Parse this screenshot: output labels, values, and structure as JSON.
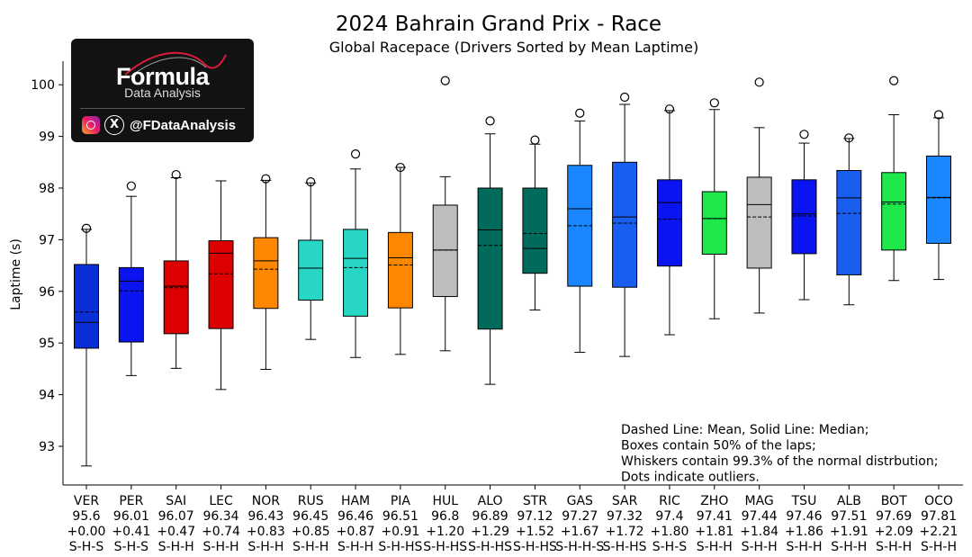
{
  "chart_data": {
    "type": "box",
    "title": "2024 Bahrain Grand Prix - Race",
    "subtitle": "Global Racepace (Drivers Sorted by Mean Laptime)",
    "ylabel": "Laptime (s)",
    "ylim": [
      92.3,
      100.5
    ],
    "yticks": [
      93,
      94,
      95,
      96,
      97,
      98,
      99,
      100
    ],
    "series": [
      {
        "driver": "VER",
        "mean_label": "95.6",
        "delta": "+0.00",
        "strategy": "S-H-S",
        "color": "#0a2fd6",
        "wlo": 92.62,
        "q1": 94.9,
        "median": 95.4,
        "mean": 95.6,
        "q3": 96.52,
        "whi": 97.2,
        "outliers": [
          97.22
        ]
      },
      {
        "driver": "PER",
        "mean_label": "96.01",
        "delta": "+0.41",
        "strategy": "S-H-S",
        "color": "#0a14f0",
        "wlo": 94.37,
        "q1": 95.02,
        "median": 96.2,
        "mean": 96.01,
        "q3": 96.46,
        "whi": 97.84,
        "outliers": [
          98.04
        ]
      },
      {
        "driver": "SAI",
        "mean_label": "96.07",
        "delta": "+0.47",
        "strategy": "S-H-H",
        "color": "#dc0000",
        "wlo": 94.51,
        "q1": 95.18,
        "median": 96.1,
        "mean": 96.07,
        "q3": 96.59,
        "whi": 98.2,
        "outliers": [
          98.26
        ]
      },
      {
        "driver": "LEC",
        "mean_label": "96.34",
        "delta": "+0.74",
        "strategy": "S-H-H",
        "color": "#dc0000",
        "wlo": 94.1,
        "q1": 95.28,
        "median": 96.74,
        "mean": 96.34,
        "q3": 96.98,
        "whi": 98.14,
        "outliers": []
      },
      {
        "driver": "NOR",
        "mean_label": "96.43",
        "delta": "+0.83",
        "strategy": "S-H-H",
        "color": "#ff8700",
        "wlo": 94.49,
        "q1": 95.67,
        "median": 96.59,
        "mean": 96.43,
        "q3": 97.04,
        "whi": 98.15,
        "outliers": [
          98.18
        ]
      },
      {
        "driver": "RUS",
        "mean_label": "96.45",
        "delta": "+0.85",
        "strategy": "S-H-H",
        "color": "#27d6c4",
        "wlo": 95.07,
        "q1": 95.83,
        "median": 96.45,
        "mean": 96.45,
        "q3": 96.99,
        "whi": 98.1,
        "outliers": [
          98.12
        ]
      },
      {
        "driver": "HAM",
        "mean_label": "96.46",
        "delta": "+0.87",
        "strategy": "S-H-H",
        "color": "#27d6c4",
        "wlo": 94.72,
        "q1": 95.52,
        "median": 96.64,
        "mean": 96.46,
        "q3": 97.2,
        "whi": 98.37,
        "outliers": [
          98.66
        ]
      },
      {
        "driver": "PIA",
        "mean_label": "96.51",
        "delta": "+0.91",
        "strategy": "S-H-HS",
        "color": "#ff8700",
        "wlo": 94.78,
        "q1": 95.68,
        "median": 96.65,
        "mean": 96.51,
        "q3": 97.14,
        "whi": 98.4,
        "outliers": [
          98.4
        ]
      },
      {
        "driver": "HUL",
        "mean_label": "96.8",
        "delta": "+1.20",
        "strategy": "S-H-HS",
        "color": "#bdbdbd",
        "wlo": 94.85,
        "q1": 95.9,
        "median": 96.8,
        "mean": 96.8,
        "q3": 97.67,
        "whi": 98.22,
        "outliers": [
          100.08
        ]
      },
      {
        "driver": "ALO",
        "mean_label": "96.89",
        "delta": "+1.29",
        "strategy": "S-H-HS",
        "color": "#006b5a",
        "wlo": 94.2,
        "q1": 95.27,
        "median": 97.19,
        "mean": 96.89,
        "q3": 98.0,
        "whi": 99.05,
        "outliers": [
          99.3
        ]
      },
      {
        "driver": "STR",
        "mean_label": "97.12",
        "delta": "+1.52",
        "strategy": "S-H-HS",
        "color": "#006b5a",
        "wlo": 95.64,
        "q1": 96.35,
        "median": 96.83,
        "mean": 97.12,
        "q3": 98.0,
        "whi": 98.85,
        "outliers": [
          98.93
        ]
      },
      {
        "driver": "GAS",
        "mean_label": "97.27",
        "delta": "+1.67",
        "strategy": "S-H-H-S",
        "color": "#1a86ff",
        "wlo": 94.82,
        "q1": 96.1,
        "median": 97.6,
        "mean": 97.27,
        "q3": 98.44,
        "whi": 99.3,
        "outliers": [
          99.45
        ]
      },
      {
        "driver": "SAR",
        "mean_label": "97.32",
        "delta": "+1.72",
        "strategy": "S-H-HS",
        "color": "#1a5ef0",
        "wlo": 94.74,
        "q1": 96.08,
        "median": 97.44,
        "mean": 97.32,
        "q3": 98.5,
        "whi": 99.62,
        "outliers": [
          99.76
        ]
      },
      {
        "driver": "RIC",
        "mean_label": "97.4",
        "delta": "+1.80",
        "strategy": "S-H-S",
        "color": "#0a14f0",
        "wlo": 95.16,
        "q1": 96.49,
        "median": 97.72,
        "mean": 97.4,
        "q3": 98.16,
        "whi": 99.5,
        "outliers": [
          99.53
        ]
      },
      {
        "driver": "ZHO",
        "mean_label": "97.41",
        "delta": "+1.81",
        "strategy": "S-H-H",
        "color": "#1ee84a",
        "wlo": 95.47,
        "q1": 96.72,
        "median": 97.41,
        "mean": 97.41,
        "q3": 97.93,
        "whi": 99.52,
        "outliers": [
          99.65
        ]
      },
      {
        "driver": "MAG",
        "mean_label": "97.44",
        "delta": "+1.84",
        "strategy": "S-H-H",
        "color": "#bdbdbd",
        "wlo": 95.58,
        "q1": 96.45,
        "median": 97.68,
        "mean": 97.44,
        "q3": 98.21,
        "whi": 99.17,
        "outliers": [
          100.05
        ]
      },
      {
        "driver": "TSU",
        "mean_label": "97.46",
        "delta": "+1.86",
        "strategy": "S-H-H",
        "color": "#0a14f0",
        "wlo": 95.84,
        "q1": 96.73,
        "median": 97.5,
        "mean": 97.46,
        "q3": 98.16,
        "whi": 98.87,
        "outliers": [
          99.04
        ]
      },
      {
        "driver": "ALB",
        "mean_label": "97.51",
        "delta": "+1.91",
        "strategy": "S-H-H",
        "color": "#1a5ef0",
        "wlo": 95.74,
        "q1": 96.32,
        "median": 97.81,
        "mean": 97.51,
        "q3": 98.34,
        "whi": 98.96,
        "outliers": [
          98.97
        ]
      },
      {
        "driver": "BOT",
        "mean_label": "97.69",
        "delta": "+2.09",
        "strategy": "S-H-H",
        "color": "#1ee84a",
        "wlo": 96.21,
        "q1": 96.8,
        "median": 97.73,
        "mean": 97.69,
        "q3": 98.3,
        "whi": 99.42,
        "outliers": [
          100.08
        ]
      },
      {
        "driver": "OCO",
        "mean_label": "97.81",
        "delta": "+2.21",
        "strategy": "S-H-H",
        "color": "#1a86ff",
        "wlo": 96.23,
        "q1": 96.93,
        "median": 97.82,
        "mean": 97.81,
        "q3": 98.62,
        "whi": 99.36,
        "outliers": [
          99.42
        ]
      }
    ],
    "annotation": [
      "Dashed Line: Mean, Solid Line: Median;",
      "Boxes contain 50% of the laps;",
      "Whiskers contain 99.3% of the normal distrbution;",
      "Dots indicate outliers."
    ]
  },
  "logo": {
    "word": "Formula",
    "sub": "Data Analysis",
    "handle": "@FDataAnalysis",
    "icons": [
      "instagram-icon",
      "x-icon"
    ]
  }
}
